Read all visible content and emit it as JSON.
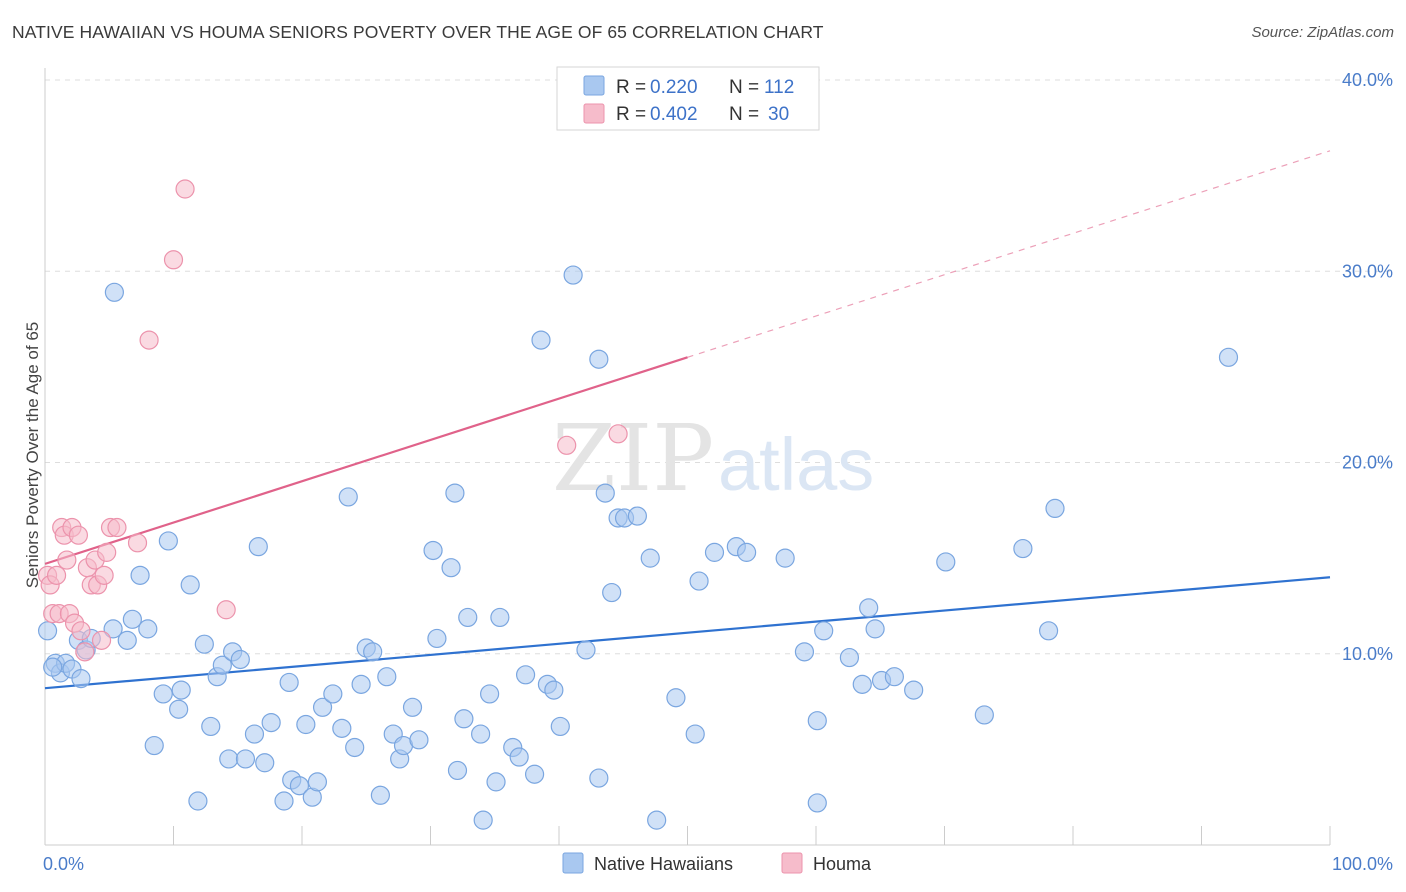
{
  "title": "NATIVE HAWAIIAN VS HOUMA SENIORS POVERTY OVER THE AGE OF 65 CORRELATION CHART",
  "source": "Source: ZipAtlas.com",
  "watermark": {
    "zip": "ZIP",
    "atlas": "atlas"
  },
  "colors": {
    "blue_fill": "#a9c8f0",
    "blue_stroke": "#7aa6e0",
    "blue_line": "#2f72d0",
    "pink_fill": "#f6bccb",
    "pink_stroke": "#ec93ac",
    "pink_line": "#e0628a",
    "tick_text": "#4a7cc9",
    "grid": "#dddddd"
  },
  "legend": {
    "rows": [
      {
        "r_label": "R = ",
        "r_value": "0.220",
        "n_label": "N = ",
        "n_value": "112"
      },
      {
        "r_label": "R = ",
        "r_value": "0.402",
        "n_label": "N = ",
        "n_value": "30"
      }
    ]
  },
  "chart_data": {
    "type": "scatter",
    "ylabel": "Seniors Poverty Over the Age of 65",
    "xlim": [
      0,
      100
    ],
    "ylim": [
      0,
      40
    ],
    "x_tick_labels": [
      "0.0%",
      "100.0%"
    ],
    "y_ticks": [
      10,
      20,
      30,
      40
    ],
    "y_tick_labels": [
      "10.0%",
      "20.0%",
      "30.0%",
      "40.0%"
    ],
    "grid": "horizontal dashed",
    "legend_position": "top-center",
    "series": [
      {
        "name": "Native Hawaiians",
        "color": "#a9c8f0",
        "trend": {
          "x": [
            0,
            100
          ],
          "y": [
            8.2,
            14.0
          ],
          "dashed_from": null
        },
        "points": [
          [
            0.2,
            11.2
          ],
          [
            0.8,
            9.5
          ],
          [
            1.2,
            9.0
          ],
          [
            1.6,
            9.5
          ],
          [
            2.1,
            9.2
          ],
          [
            2.6,
            10.7
          ],
          [
            2.8,
            8.7
          ],
          [
            3.2,
            10.2
          ],
          [
            3.6,
            10.8
          ],
          [
            5.4,
            28.9
          ],
          [
            5.3,
            11.3
          ],
          [
            6.4,
            10.7
          ],
          [
            6.8,
            11.8
          ],
          [
            7.4,
            14.1
          ],
          [
            8.0,
            11.3
          ],
          [
            8.5,
            5.2
          ],
          [
            9.2,
            7.9
          ],
          [
            9.6,
            15.9
          ],
          [
            10.4,
            7.1
          ],
          [
            10.6,
            8.1
          ],
          [
            11.3,
            13.6
          ],
          [
            11.9,
            2.3
          ],
          [
            12.4,
            10.5
          ],
          [
            12.9,
            6.2
          ],
          [
            13.4,
            8.8
          ],
          [
            13.8,
            9.4
          ],
          [
            14.3,
            4.5
          ],
          [
            14.6,
            10.1
          ],
          [
            15.2,
            9.7
          ],
          [
            15.6,
            4.5
          ],
          [
            16.3,
            5.8
          ],
          [
            16.6,
            15.6
          ],
          [
            17.1,
            4.3
          ],
          [
            17.6,
            6.4
          ],
          [
            18.6,
            2.3
          ],
          [
            19.0,
            8.5
          ],
          [
            19.2,
            3.4
          ],
          [
            19.8,
            3.1
          ],
          [
            20.3,
            6.3
          ],
          [
            20.8,
            2.5
          ],
          [
            21.2,
            3.3
          ],
          [
            21.6,
            7.2
          ],
          [
            22.4,
            7.9
          ],
          [
            23.1,
            6.1
          ],
          [
            23.6,
            18.2
          ],
          [
            24.1,
            5.1
          ],
          [
            24.6,
            8.4
          ],
          [
            25.0,
            10.3
          ],
          [
            25.5,
            10.1
          ],
          [
            26.1,
            2.6
          ],
          [
            26.6,
            8.8
          ],
          [
            27.1,
            5.8
          ],
          [
            27.6,
            4.5
          ],
          [
            27.9,
            5.2
          ],
          [
            28.6,
            7.2
          ],
          [
            29.1,
            5.5
          ],
          [
            30.2,
            15.4
          ],
          [
            30.5,
            10.8
          ],
          [
            31.6,
            14.5
          ],
          [
            31.9,
            18.4
          ],
          [
            32.1,
            3.9
          ],
          [
            32.6,
            6.6
          ],
          [
            32.9,
            11.9
          ],
          [
            33.9,
            5.8
          ],
          [
            34.1,
            1.3
          ],
          [
            34.6,
            7.9
          ],
          [
            35.1,
            3.3
          ],
          [
            35.4,
            11.9
          ],
          [
            36.4,
            5.1
          ],
          [
            36.9,
            4.6
          ],
          [
            37.4,
            8.9
          ],
          [
            38.1,
            3.7
          ],
          [
            38.6,
            26.4
          ],
          [
            39.1,
            8.4
          ],
          [
            39.6,
            8.1
          ],
          [
            40.1,
            6.2
          ],
          [
            41.1,
            29.8
          ],
          [
            42.1,
            10.2
          ],
          [
            43.1,
            3.5
          ],
          [
            43.1,
            25.4
          ],
          [
            43.6,
            18.4
          ],
          [
            44.1,
            13.2
          ],
          [
            44.6,
            17.1
          ],
          [
            45.1,
            17.1
          ],
          [
            46.1,
            17.2
          ],
          [
            47.1,
            15.0
          ],
          [
            47.6,
            1.3
          ],
          [
            49.1,
            7.7
          ],
          [
            50.6,
            5.8
          ],
          [
            50.9,
            13.8
          ],
          [
            52.1,
            15.3
          ],
          [
            53.8,
            15.6
          ],
          [
            54.6,
            15.3
          ],
          [
            57.6,
            15.0
          ],
          [
            59.1,
            10.1
          ],
          [
            60.1,
            6.5
          ],
          [
            60.1,
            2.2
          ],
          [
            60.6,
            11.2
          ],
          [
            62.6,
            9.8
          ],
          [
            63.6,
            8.4
          ],
          [
            64.1,
            12.4
          ],
          [
            64.6,
            11.3
          ],
          [
            65.1,
            8.6
          ],
          [
            66.1,
            8.8
          ],
          [
            67.6,
            8.1
          ],
          [
            70.1,
            14.8
          ],
          [
            73.1,
            6.8
          ],
          [
            76.1,
            15.5
          ],
          [
            78.1,
            11.2
          ],
          [
            78.6,
            17.6
          ],
          [
            92.1,
            25.5
          ],
          [
            0.6,
            9.3
          ]
        ]
      },
      {
        "name": "Houma",
        "color": "#f6bccb",
        "trend": {
          "x": [
            0,
            100
          ],
          "y": [
            14.7,
            36.3
          ],
          "dashed_from": 50
        },
        "points": [
          [
            0.2,
            14.1
          ],
          [
            0.4,
            13.6
          ],
          [
            0.6,
            12.1
          ],
          [
            0.9,
            14.1
          ],
          [
            1.1,
            12.1
          ],
          [
            1.3,
            16.6
          ],
          [
            1.5,
            16.2
          ],
          [
            1.7,
            14.9
          ],
          [
            1.9,
            12.1
          ],
          [
            2.1,
            16.6
          ],
          [
            2.3,
            11.6
          ],
          [
            2.6,
            16.2
          ],
          [
            2.8,
            11.2
          ],
          [
            3.1,
            10.1
          ],
          [
            3.3,
            14.5
          ],
          [
            3.6,
            13.6
          ],
          [
            3.9,
            14.9
          ],
          [
            4.1,
            13.6
          ],
          [
            4.4,
            10.7
          ],
          [
            4.6,
            14.1
          ],
          [
            4.8,
            15.3
          ],
          [
            5.1,
            16.6
          ],
          [
            5.6,
            16.6
          ],
          [
            7.2,
            15.8
          ],
          [
            8.1,
            26.4
          ],
          [
            10.0,
            30.6
          ],
          [
            10.9,
            34.3
          ],
          [
            14.1,
            12.3
          ],
          [
            40.6,
            20.9
          ],
          [
            44.6,
            21.5
          ]
        ]
      }
    ]
  }
}
